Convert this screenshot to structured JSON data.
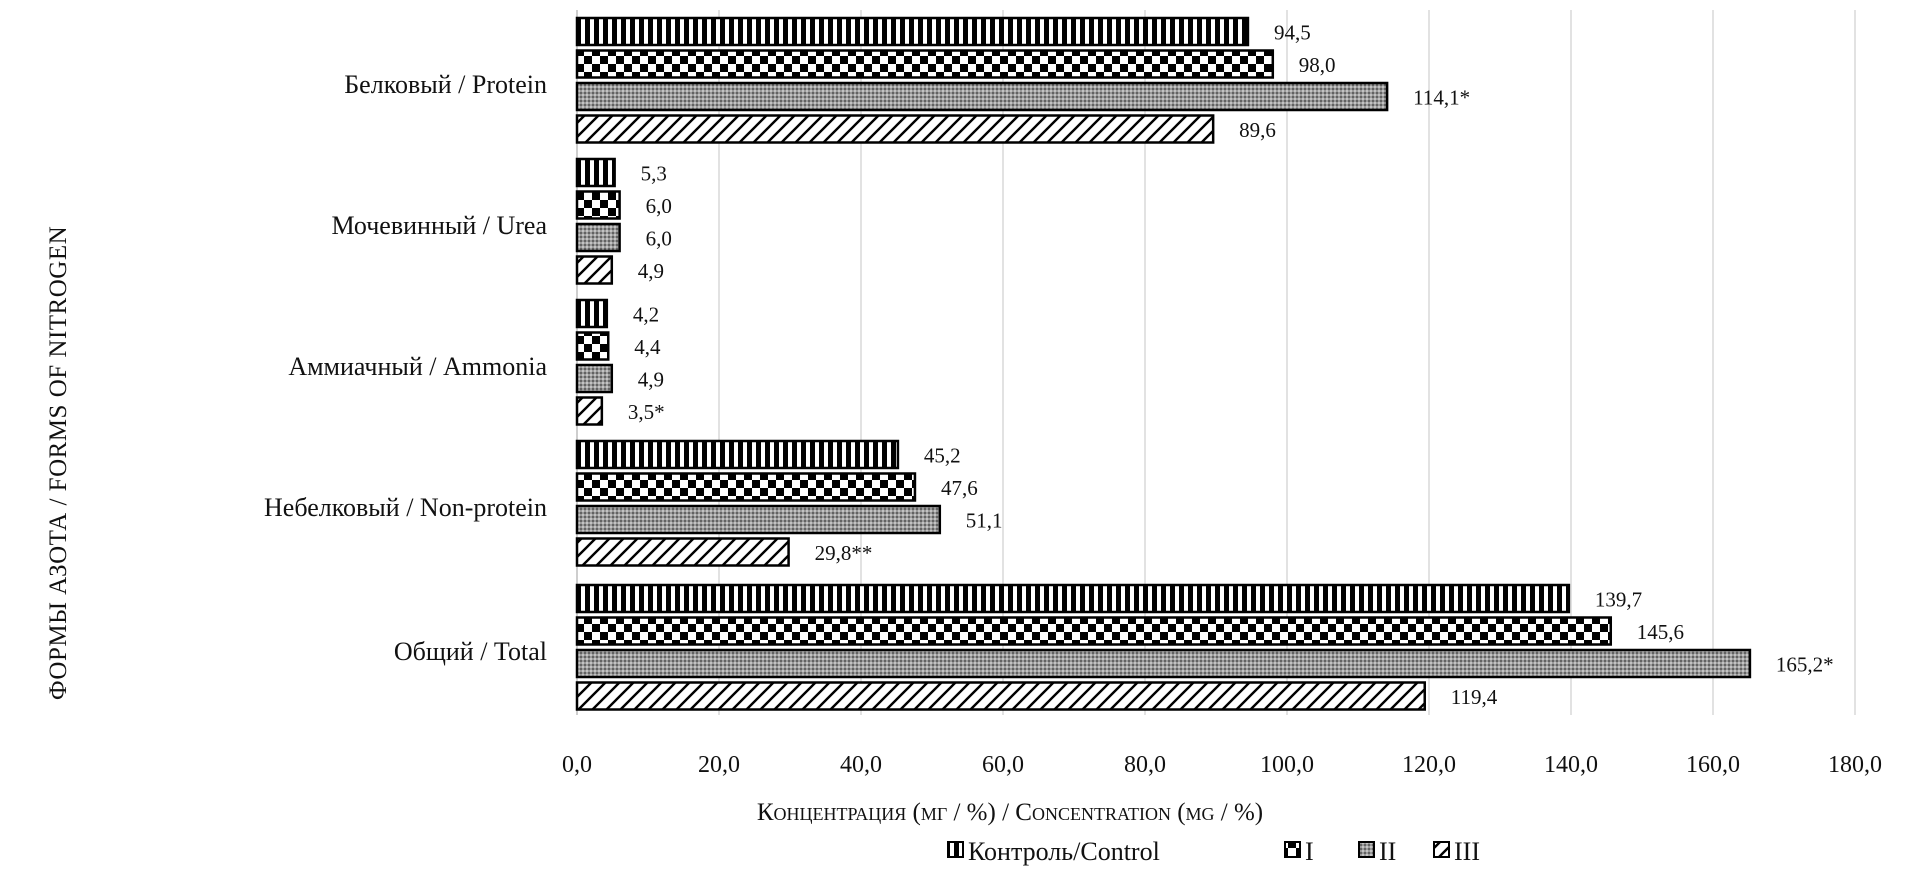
{
  "chart_data": {
    "type": "bar",
    "orientation": "horizontal",
    "categories": [
      "Белковый / Protein",
      "Мочевинный / Urea",
      "Аммиачный / Ammonia",
      "Небелковый / Non-protein",
      "Общий / Total"
    ],
    "series": [
      {
        "name": "Контроль/Control",
        "pattern": "vertical-stripes",
        "values": [
          94.5,
          5.3,
          4.2,
          45.2,
          139.7
        ],
        "labels": [
          "94,5",
          "5,3",
          "4,2",
          "45,2",
          "139,7"
        ]
      },
      {
        "name": "I",
        "pattern": "checkerboard",
        "values": [
          98.0,
          6.0,
          4.4,
          47.6,
          145.6
        ],
        "labels": [
          "98,0",
          "6,0",
          "4,4",
          "47,6",
          "145,6"
        ]
      },
      {
        "name": "II",
        "pattern": "dotted-gray",
        "values": [
          114.1,
          6.0,
          4.9,
          51.1,
          165.2
        ],
        "labels": [
          "114,1*",
          "6,0",
          "4,9",
          "51,1",
          "165,2*"
        ]
      },
      {
        "name": "III",
        "pattern": "diagonal-hatch",
        "values": [
          89.6,
          4.9,
          3.5,
          29.8,
          119.4
        ],
        "labels": [
          "89,6",
          "4,9",
          "3,5*",
          "29,8**",
          "119,4"
        ]
      }
    ],
    "xlabel": "Концентрация (мг / %) / Concentration (mg / %)",
    "ylabel": "Формы азота / Forms of nitrogen",
    "xlim": [
      0,
      180
    ],
    "xticks": [
      "0,0",
      "20,0",
      "40,0",
      "60,0",
      "80,0",
      "100,0",
      "120,0",
      "140,0",
      "160,0",
      "180,0"
    ],
    "grid": "vertical",
    "legend": "bottom",
    "colors": {
      "bar_edge": "#000000",
      "grid": "#d9d9d9",
      "text": "#111111"
    }
  }
}
